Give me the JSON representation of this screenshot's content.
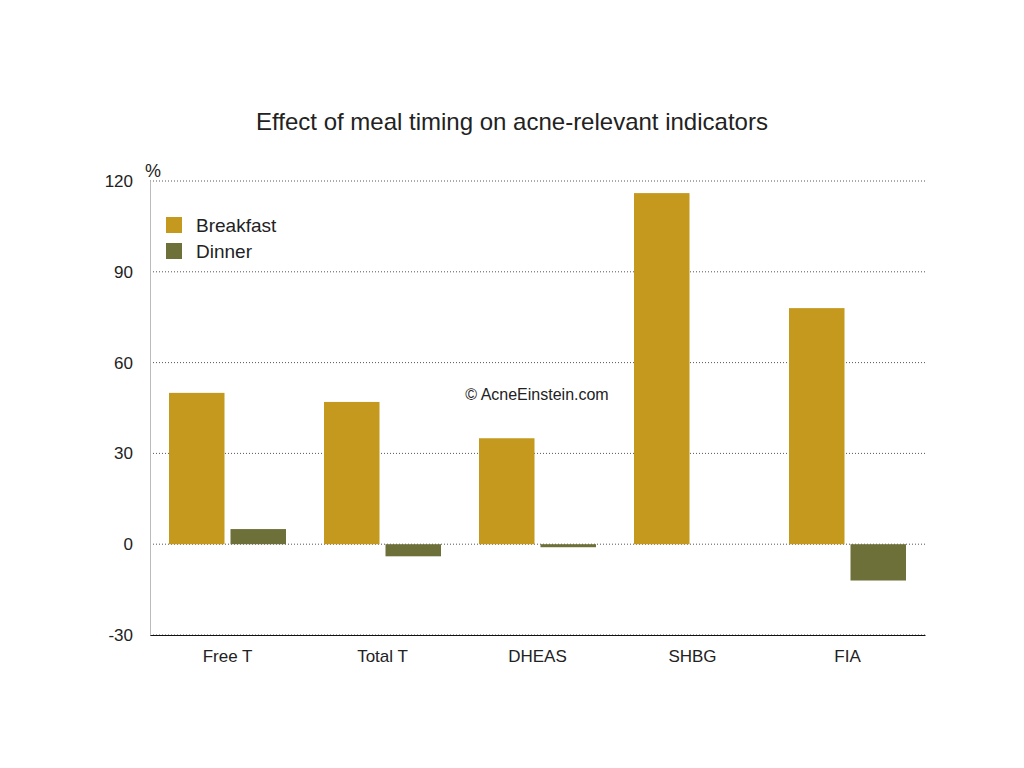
{
  "chart_data": {
    "type": "bar",
    "title": "Effect of meal timing on acne-relevant indicators",
    "y_label": "%",
    "categories": [
      "Free T",
      "Total T",
      "DHEAS",
      "SHBG",
      "FIA"
    ],
    "series": [
      {
        "name": "Breakfast",
        "color": "#c4991d",
        "values": [
          50,
          47,
          35,
          116,
          78
        ]
      },
      {
        "name": "Dinner",
        "color": "#6e703a",
        "values": [
          5,
          -4,
          -1,
          0,
          -12
        ]
      }
    ],
    "ylim": [
      -30,
      120
    ],
    "yticks": [
      -30,
      0,
      30,
      60,
      90,
      120
    ],
    "grid": true,
    "legend": "upper left",
    "annotations": [
      "© AcneEinstein.com"
    ]
  }
}
